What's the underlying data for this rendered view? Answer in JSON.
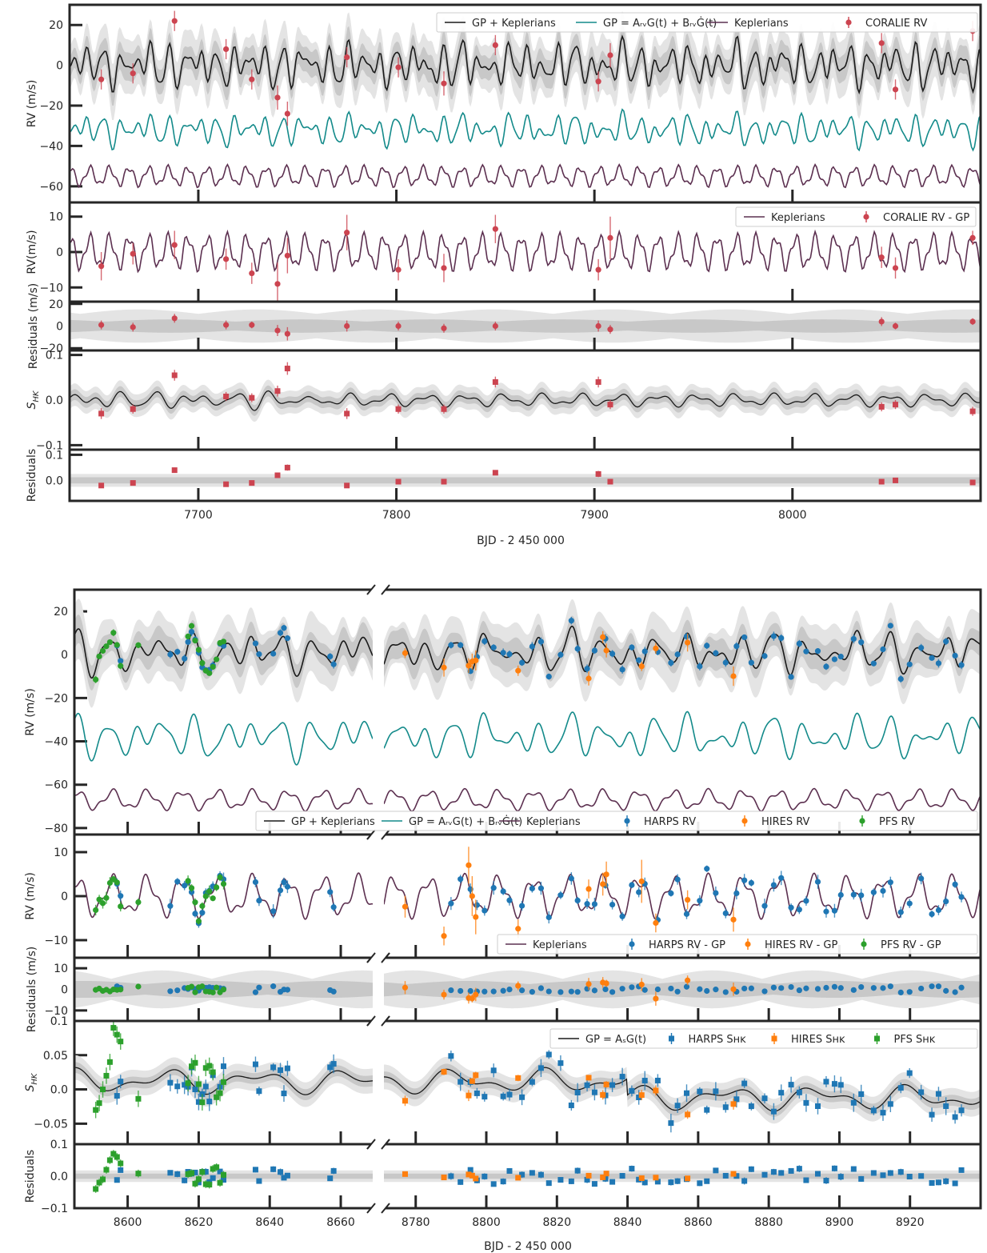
{
  "colors": {
    "gp_kep": "#1a1a1a",
    "gp": "#138a8a",
    "kep": "#5c3050",
    "coralie": "#cc4450",
    "harps": "#1f77b4",
    "hires": "#ff7f0e",
    "pfs": "#2ca02c",
    "band_inner": "#c8c8c8",
    "band_outer": "#e4e4e4",
    "frame": "#262626"
  },
  "chart_data": [
    {
      "id": "top",
      "type": "line",
      "xlabel": "BJD - 2 450 000",
      "xlim": [
        7635,
        8095
      ],
      "xticks": [
        7700,
        7800,
        7900,
        8000
      ],
      "coralie_times": [
        7651,
        7667,
        7688,
        7714,
        7727,
        7740,
        7745,
        7775,
        7801,
        7824,
        7850,
        7902,
        7908,
        8045,
        8052,
        8091
      ],
      "panels": [
        {
          "name": "rv",
          "ylabel": "RV (m/s)",
          "ylim": [
            -68,
            30
          ],
          "yticks": [
            -60,
            -40,
            -20,
            0,
            20
          ],
          "legend": [
            "GP + Keplerians",
            "GP = A_RV G(t) + B_RV Ġ(t)",
            "Keplerians",
            "CORALIE RV"
          ],
          "legend_position": "top-right",
          "coralie_values": [
            -7,
            -4,
            22,
            8,
            -7,
            -16,
            -24,
            4,
            -1,
            -9,
            10,
            -8,
            5,
            11,
            -12,
            17
          ],
          "coralie_errors": [
            5,
            5,
            5,
            5,
            5,
            6,
            6,
            5,
            5,
            6,
            5,
            5,
            6,
            5,
            5,
            5
          ]
        },
        {
          "name": "rv_minus_gp",
          "ylabel": "RV(m/s)",
          "ylim": [
            -14,
            14
          ],
          "yticks": [
            -10,
            0,
            10
          ],
          "legend": [
            "Keplerians",
            "CORALIE RV - GP"
          ],
          "legend_position": "top-right",
          "coralie_values": [
            -4,
            -0.5,
            2,
            -2,
            -6,
            -9,
            -1,
            5.5,
            -5,
            -4.5,
            6.5,
            -5,
            4,
            -1.5,
            -4.5,
            4
          ],
          "coralie_errors": [
            4,
            3,
            4,
            3,
            3,
            6,
            5,
            5,
            3,
            4,
            4,
            3,
            6,
            3,
            3,
            2
          ]
        },
        {
          "name": "rv_residuals",
          "ylabel": "Residuals (m/s)",
          "ylim": [
            -22,
            22
          ],
          "yticks": [
            -20,
            0,
            20
          ],
          "coralie_values": [
            1,
            -1,
            7,
            1,
            1,
            -4,
            -7,
            0,
            0,
            -2,
            0,
            0,
            -3,
            4,
            0,
            4
          ],
          "coralie_errors": [
            4,
            4,
            4,
            4,
            3,
            5,
            6,
            5,
            4,
            4,
            4,
            5,
            4,
            4,
            3,
            3
          ]
        },
        {
          "name": "shk",
          "ylabel": "S_HK",
          "ylim": [
            -0.11,
            0.11
          ],
          "yticks": [
            -0.1,
            0.0,
            0.1
          ],
          "coralie_values": [
            -0.03,
            -0.02,
            0.055,
            0.008,
            0.005,
            0.02,
            0.07,
            -0.03,
            -0.02,
            -0.02,
            0.04,
            0.04,
            -0.01,
            -0.015,
            -0.01,
            -0.025
          ],
          "coralie_errors": [
            0.012,
            0.01,
            0.012,
            0.01,
            0.01,
            0.012,
            0.014,
            0.012,
            0.01,
            0.01,
            0.012,
            0.012,
            0.01,
            0.01,
            0.01,
            0.01
          ]
        },
        {
          "name": "shk_residuals",
          "ylabel": "Residuals",
          "ylim": [
            -0.08,
            0.12
          ],
          "yticks": [
            0.0,
            0.1
          ],
          "coralie_values": [
            -0.02,
            -0.01,
            0.04,
            -0.015,
            -0.01,
            0.02,
            0.05,
            -0.02,
            -0.005,
            -0.005,
            0.03,
            0.025,
            -0.005,
            -0.005,
            0.0,
            -0.008
          ],
          "coralie_errors": [
            0.01,
            0.01,
            0.01,
            0.01,
            0.01,
            0.01,
            0.012,
            0.01,
            0.01,
            0.01,
            0.01,
            0.012,
            0.01,
            0.01,
            0.01,
            0.01
          ]
        }
      ]
    },
    {
      "id": "bottom",
      "type": "line",
      "xlabel": "BJD - 2 450 000",
      "xlim_left": [
        8585,
        8669
      ],
      "xlim_right": [
        8771,
        8940
      ],
      "xticks_left": [
        8600,
        8620,
        8640,
        8660
      ],
      "xticks_right": [
        8780,
        8800,
        8820,
        8840,
        8860,
        8880,
        8900,
        8920
      ],
      "panels": [
        {
          "name": "rv",
          "ylabel": "RV (m/s)",
          "ylim": [
            -83,
            30
          ],
          "yticks": [
            -80,
            -60,
            -40,
            -20,
            0,
            20
          ],
          "legend": [
            "GP + Keplerians",
            "GP = A_RV G(t) + B_RV Ġ(t)",
            "Keplerians",
            "HARPS RV",
            "HIRES RV",
            "PFS RV"
          ],
          "legend_position": "bottom-right"
        },
        {
          "name": "rv_minus_gp",
          "ylabel": "RV (m/s)",
          "ylim": [
            -14,
            14
          ],
          "yticks": [
            -10,
            0,
            10
          ],
          "legend": [
            "Keplerians",
            "HARPS RV - GP",
            "HIRES RV - GP",
            "PFS RV - GP"
          ],
          "legend_position": "bottom-right"
        },
        {
          "name": "rv_residuals",
          "ylabel": "Residuals (m/s)",
          "ylim": [
            -15,
            15
          ],
          "yticks": [
            -10,
            0,
            10
          ]
        },
        {
          "name": "shk",
          "ylabel": "S_HK",
          "ylim": [
            -0.08,
            0.1
          ],
          "yticks": [
            -0.05,
            0.0,
            0.05,
            0.1
          ],
          "legend": [
            "GP = A_S G(t)",
            "HARPS S_HK",
            "HIRES S_HK",
            "PFS S_HK"
          ],
          "legend_position": "top-right"
        },
        {
          "name": "shk_residuals",
          "ylabel": "Residuals",
          "ylim": [
            -0.1,
            0.1
          ],
          "yticks": [
            -0.1,
            0.0,
            0.1
          ]
        }
      ]
    }
  ],
  "axis_text": {
    "top_xlabel": "BJD - 2 450 000",
    "bottom_xlabel": "BJD - 2 450 000"
  }
}
